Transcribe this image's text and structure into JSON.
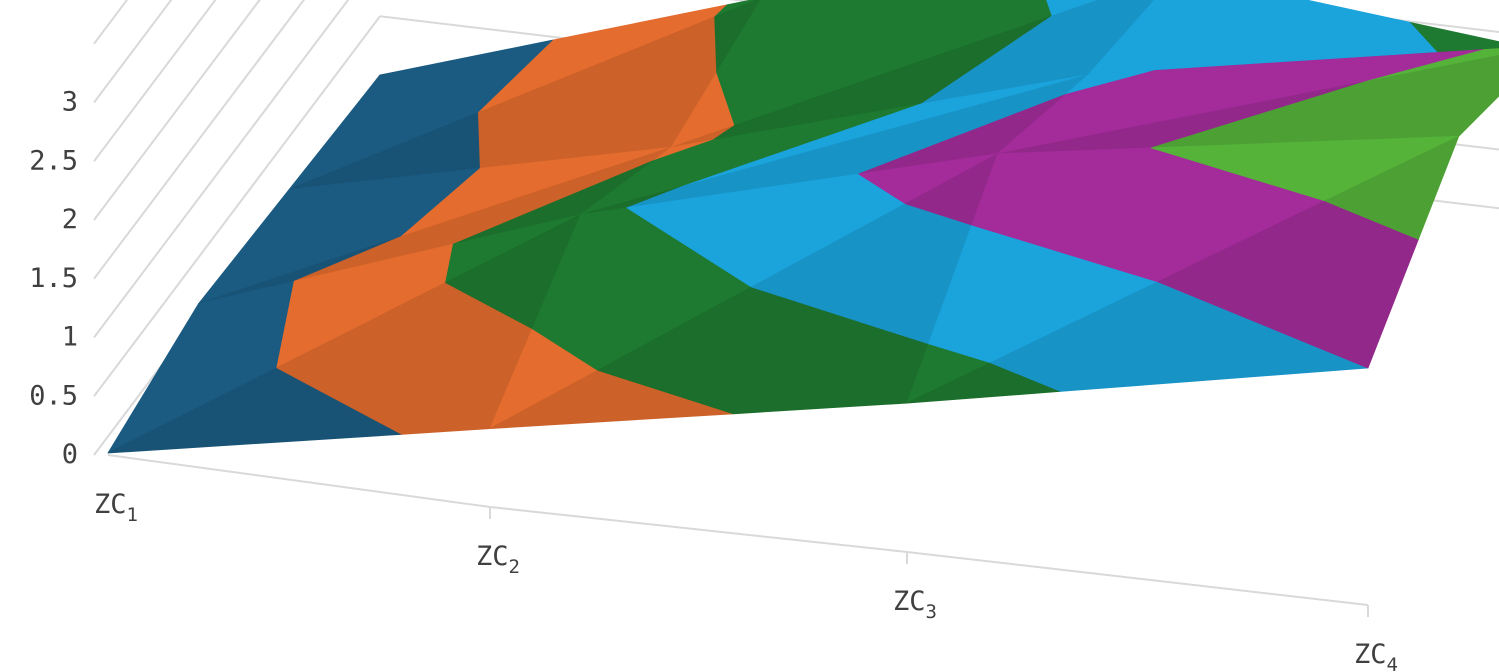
{
  "chart_data": {
    "type": "surface",
    "title": "",
    "categories": [
      {
        "base": "ZC",
        "sub": "1"
      },
      {
        "base": "ZC",
        "sub": "2"
      },
      {
        "base": "ZC",
        "sub": "3"
      },
      {
        "base": "ZC",
        "sub": "4"
      }
    ],
    "y_ticks": [
      "0",
      "0.5",
      "1",
      "1.5",
      "2",
      "2.5",
      "3"
    ],
    "zlim": [
      0,
      3.5
    ],
    "grid": true,
    "surface_values": [
      [
        0,
        0.65,
        1.25,
        2.0
      ],
      [
        0.2,
        1.4,
        2.3,
        2.9
      ],
      [
        0.1,
        0.9,
        1.9,
        2.6
      ],
      [
        0,
        1.1,
        1.7,
        1.3
      ]
    ],
    "bands": [
      {
        "range": [
          0,
          0.5
        ],
        "color": "#1b5b82"
      },
      {
        "range": [
          0.5,
          1.0
        ],
        "color": "#e36c2e"
      },
      {
        "range": [
          1.0,
          1.5
        ],
        "color": "#1e7a30"
      },
      {
        "range": [
          1.5,
          2.0
        ],
        "color": "#1ba3dc"
      },
      {
        "range": [
          2.0,
          2.5
        ],
        "color": "#a32c9a"
      },
      {
        "range": [
          2.5,
          3.0
        ],
        "color": "#55b33a"
      }
    ]
  }
}
